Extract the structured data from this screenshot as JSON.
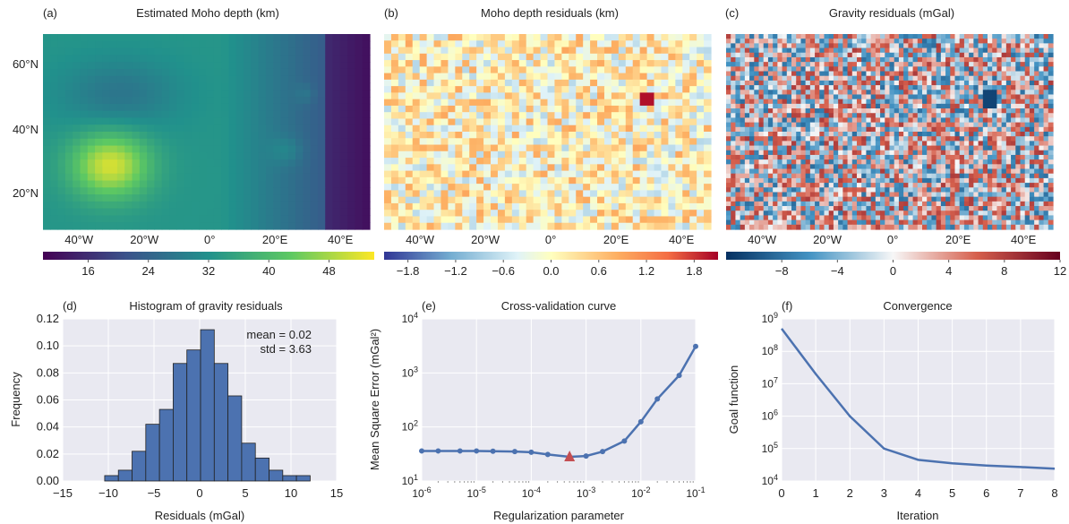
{
  "colors": {
    "axes_bg": "#e9e9f1",
    "grid": "#ffffff",
    "line": "#4c72b0",
    "hist_fill": "#4c72b0",
    "marker": "#c44e52"
  },
  "panels": {
    "a": {
      "letter": "(a)",
      "title": "Estimated Moho depth (km)"
    },
    "b": {
      "letter": "(b)",
      "title": "Moho depth residuals (km)"
    },
    "c": {
      "letter": "(c)",
      "title": "Gravity residuals (mGal)"
    },
    "d": {
      "letter": "(d)",
      "title": "Histogram of gravity residuals",
      "stat_mean": "mean = 0.02",
      "stat_std": "std = 3.63"
    },
    "e": {
      "letter": "(e)",
      "title": "Cross-validation curve"
    },
    "f": {
      "letter": "(f)",
      "title": "Convergence"
    }
  },
  "chart_data": [
    {
      "type": "heatmap",
      "title": "Estimated Moho depth (km)",
      "colormap": "viridis",
      "x_ticks": [
        "40°W",
        "20°W",
        "0°",
        "20°E",
        "40°E"
      ],
      "y_ticks": [
        "20°N",
        "40°N",
        "60°N"
      ],
      "colorbar_ticks": [
        "16",
        "24",
        "32",
        "40",
        "48"
      ],
      "clim": [
        10,
        54
      ]
    },
    {
      "type": "heatmap",
      "title": "Moho depth residuals (km)",
      "colormap": "RdYlBu_r",
      "x_ticks": [
        "40°W",
        "20°W",
        "0°",
        "20°E",
        "40°E"
      ],
      "colorbar_ticks": [
        "−1.8",
        "−1.2",
        "−0.6",
        "0.0",
        "0.6",
        "1.2",
        "1.8"
      ],
      "clim": [
        -2.1,
        2.1
      ]
    },
    {
      "type": "heatmap",
      "title": "Gravity residuals (mGal)",
      "colormap": "RdBu_r",
      "x_ticks": [
        "40°W",
        "20°W",
        "0°",
        "20°E",
        "40°E"
      ],
      "colorbar_ticks": [
        "−8",
        "−4",
        "0",
        "4",
        "8",
        "12"
      ],
      "clim": [
        -12,
        12
      ]
    },
    {
      "type": "bar",
      "title": "Histogram of gravity residuals",
      "xlabel": "Residuals (mGal)",
      "ylabel": "Frequency",
      "xlim": [
        -15,
        15
      ],
      "ylim": [
        0,
        0.12
      ],
      "x_ticks": [
        "−15",
        "−10",
        "−5",
        "0",
        "5",
        "10",
        "15"
      ],
      "y_ticks": [
        "0.00",
        "0.02",
        "0.04",
        "0.06",
        "0.08",
        "0.10",
        "0.12"
      ],
      "bin_width": 1.5,
      "bin_starts": [
        -10.4,
        -8.9,
        -7.4,
        -5.9,
        -4.4,
        -2.9,
        -1.4,
        0.1,
        1.6,
        3.1,
        4.6,
        6.1,
        7.6,
        9.1,
        10.6
      ],
      "values": [
        0.004,
        0.008,
        0.022,
        0.042,
        0.053,
        0.087,
        0.097,
        0.112,
        0.087,
        0.063,
        0.028,
        0.017,
        0.008,
        0.004,
        0.004
      ]
    },
    {
      "type": "line",
      "title": "Cross-validation curve",
      "xlabel": "Regularization parameter",
      "ylabel": "Mean Square Error (mGal²)",
      "xscale": "log",
      "yscale": "log",
      "xlim": [
        1e-06,
        0.1
      ],
      "ylim": [
        10,
        10000
      ],
      "x_ticks": [
        "10-6",
        "10-5",
        "10-4",
        "10-3",
        "10-2",
        "10-1"
      ],
      "y_ticks": [
        "101",
        "102",
        "103",
        "104"
      ],
      "x": [
        1e-06,
        2e-06,
        5e-06,
        1e-05,
        2e-05,
        5e-05,
        0.0001,
        0.0002,
        0.0005,
        0.001,
        0.002,
        0.005,
        0.01,
        0.02,
        0.05,
        0.1
      ],
      "y": [
        36,
        36,
        36,
        36,
        35.5,
        35,
        34,
        31,
        28,
        29,
        35,
        55,
        125,
        330,
        900,
        3100
      ],
      "highlight": {
        "x": 0.0005,
        "y": 28
      }
    },
    {
      "type": "line",
      "title": "Convergence",
      "xlabel": "Iteration",
      "ylabel": "Goal function",
      "yscale": "log",
      "xlim": [
        0,
        8
      ],
      "ylim": [
        10000,
        1000000000
      ],
      "x_ticks": [
        "0",
        "1",
        "2",
        "3",
        "4",
        "5",
        "6",
        "7",
        "8"
      ],
      "y_ticks": [
        "104",
        "105",
        "106",
        "107",
        "108",
        "109"
      ],
      "x": [
        0,
        1,
        2,
        3,
        4,
        5,
        6,
        7,
        8
      ],
      "y": [
        500000000,
        20000000,
        1000000,
        100000,
        45000,
        35000,
        30000,
        27000,
        24000
      ]
    }
  ]
}
